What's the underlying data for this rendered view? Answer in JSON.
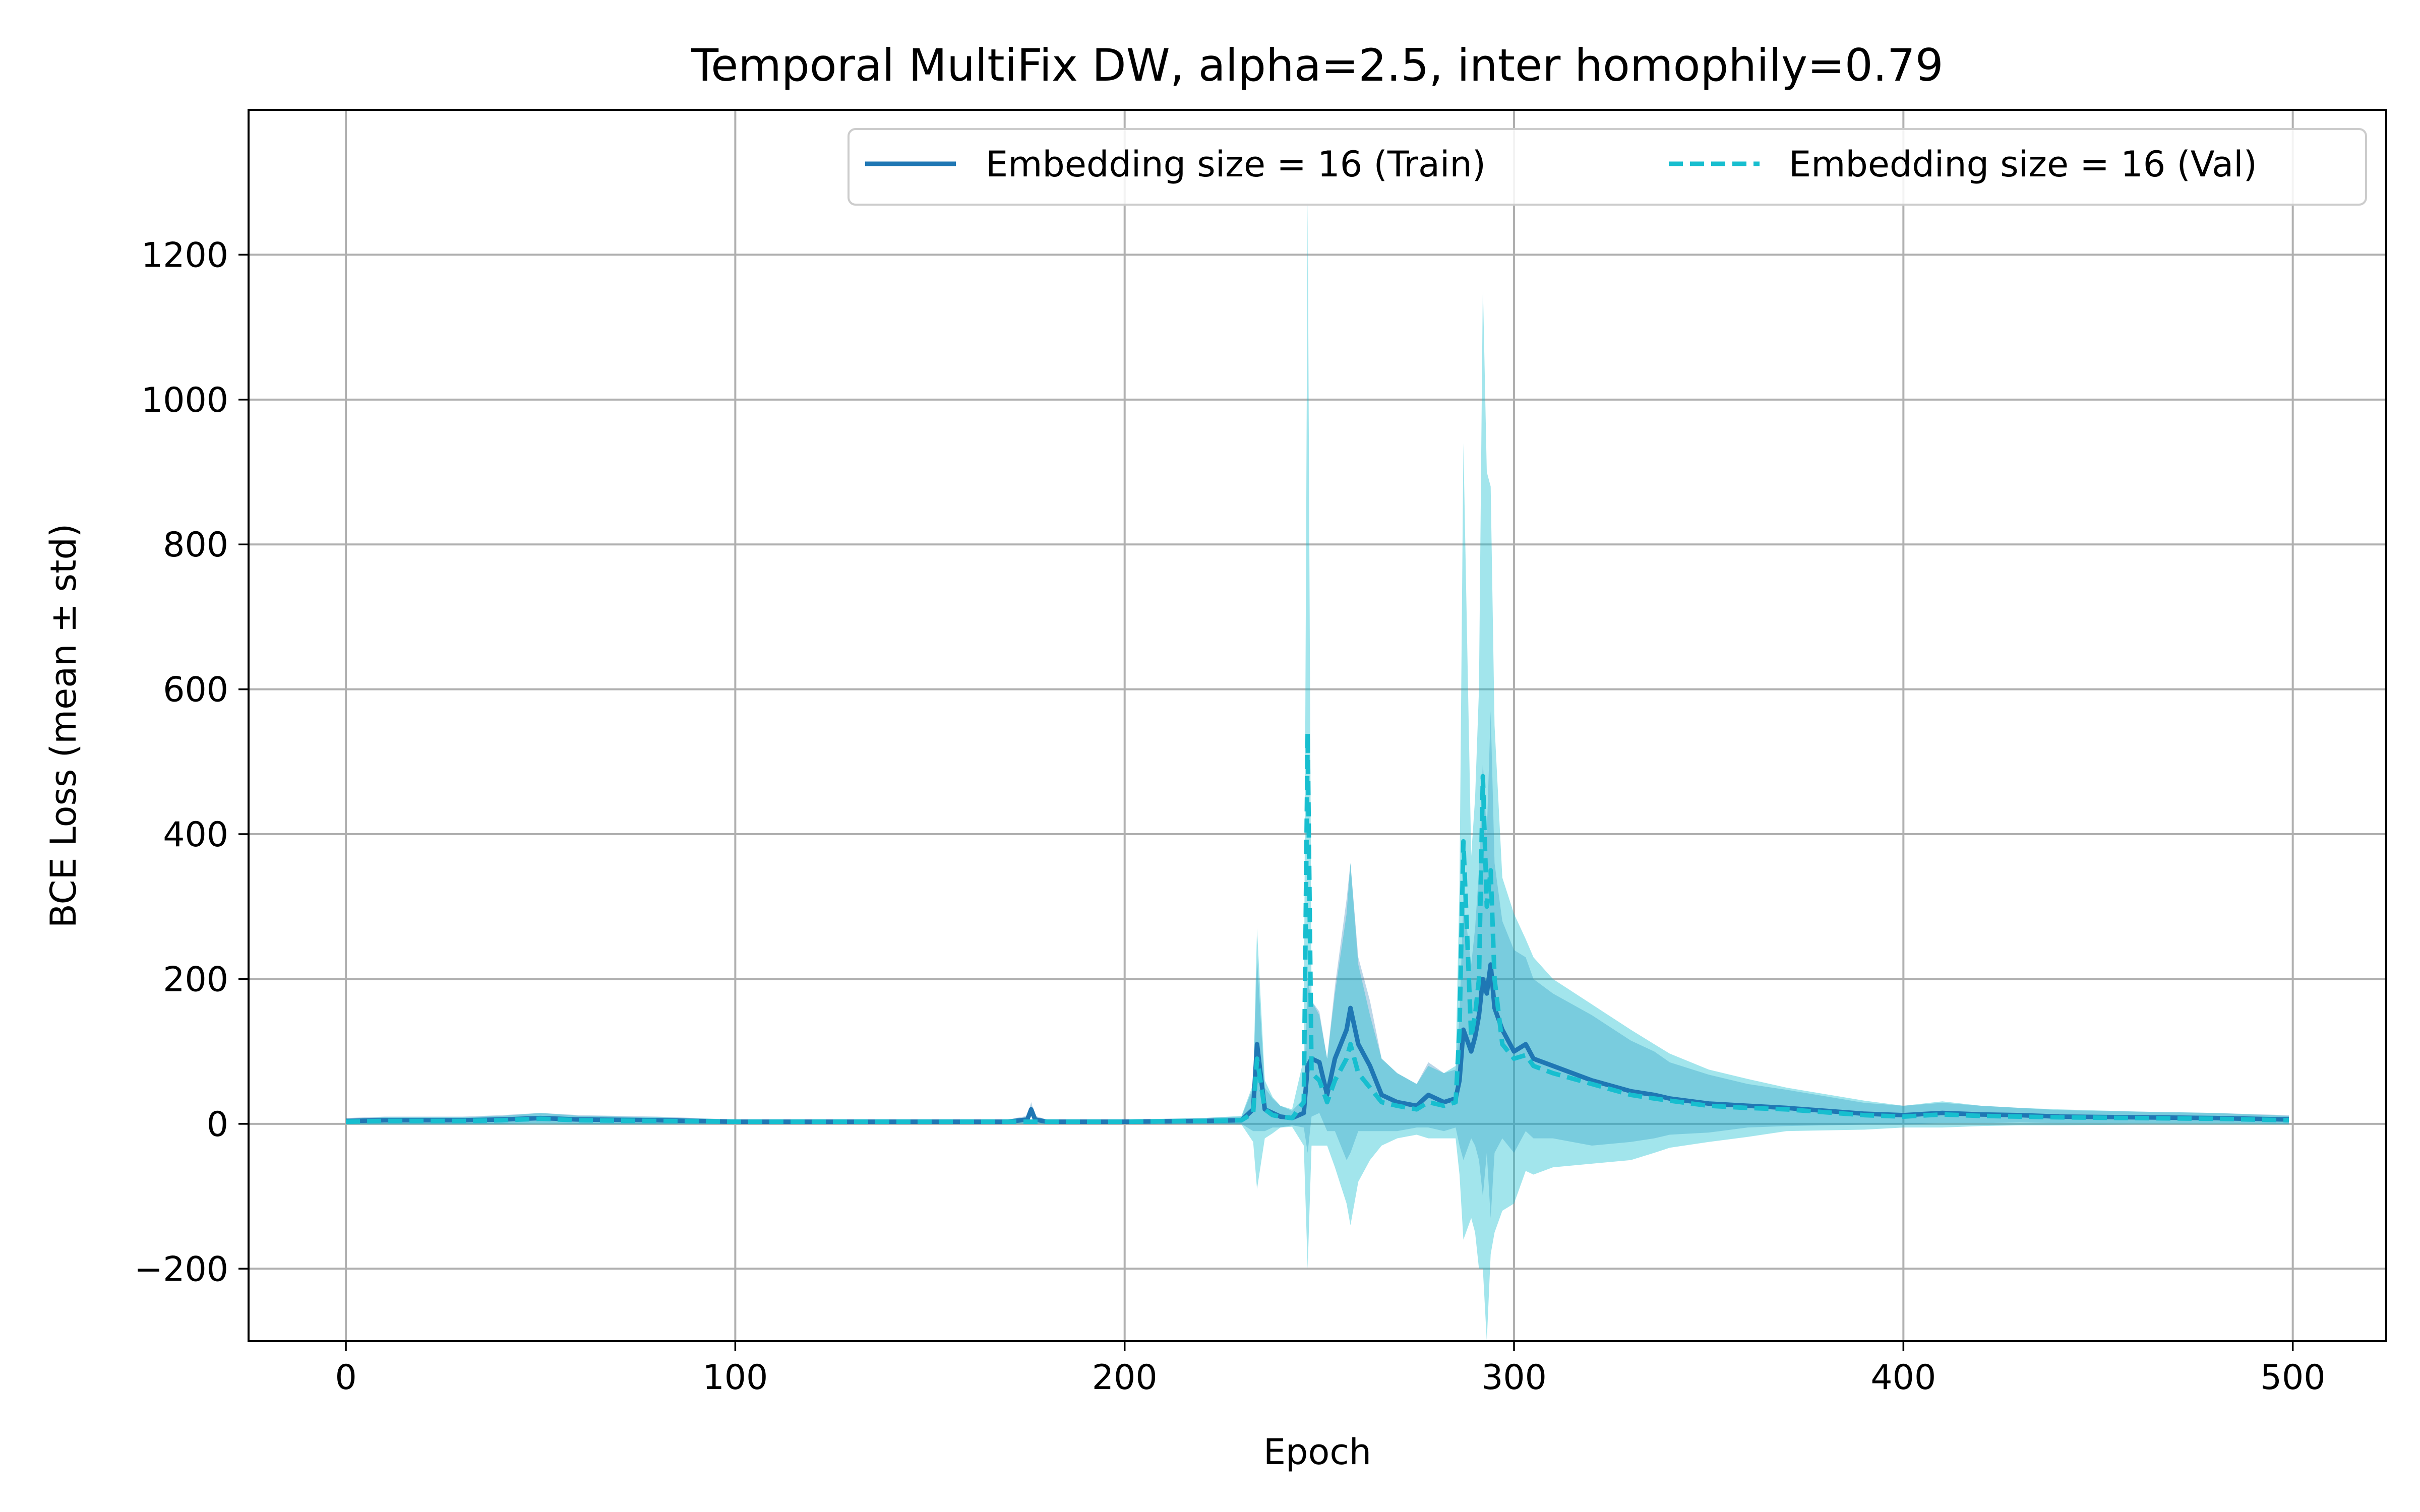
{
  "chart_data": {
    "type": "line",
    "title": "Temporal MultiFix DW, alpha=2.5, inter homophily=0.79",
    "xlabel": "Epoch",
    "ylabel": "BCE Loss (mean ± std)",
    "xlim": [
      -25,
      524
    ],
    "ylim": [
      -300,
      1400
    ],
    "xticks": [
      0,
      100,
      200,
      300,
      400,
      500
    ],
    "xtick_labels": [
      "0",
      "100",
      "200",
      "300",
      "400",
      "500"
    ],
    "yticks": [
      -200,
      0,
      200,
      400,
      600,
      800,
      1000,
      1200
    ],
    "ytick_labels": [
      "−200",
      "0",
      "200",
      "400",
      "600",
      "800",
      "1000",
      "1200"
    ],
    "grid": true,
    "legend": {
      "placement": "top-right",
      "columns": 2
    },
    "colors": {
      "train": "#1f77b4",
      "val": "#17becf",
      "band_train": "#1f77b4",
      "band_val": "#17becf"
    },
    "series": [
      {
        "name": "Embedding size = 16 (Train)",
        "style": "solid",
        "x": [
          0,
          10,
          20,
          30,
          40,
          50,
          60,
          80,
          100,
          120,
          150,
          170,
          175,
          176,
          177,
          180,
          200,
          220,
          230,
          233,
          234,
          236,
          238,
          240,
          243,
          246,
          247,
          248,
          250,
          252,
          254,
          257,
          258,
          260,
          263,
          266,
          270,
          275,
          278,
          282,
          285,
          286,
          287,
          289,
          290,
          291,
          292,
          293,
          294,
          295,
          297,
          300,
          303,
          305,
          310,
          320,
          330,
          336,
          340,
          350,
          360,
          370,
          380,
          390,
          400,
          410,
          420,
          430,
          440,
          460,
          480,
          499
        ],
        "y": [
          4,
          5,
          5,
          5,
          6,
          8,
          6,
          5,
          3,
          3,
          3,
          3,
          6,
          20,
          6,
          3,
          3,
          4,
          5,
          20,
          110,
          20,
          15,
          10,
          8,
          15,
          80,
          90,
          85,
          40,
          90,
          130,
          160,
          110,
          80,
          40,
          30,
          25,
          40,
          30,
          35,
          60,
          130,
          100,
          120,
          150,
          200,
          180,
          220,
          160,
          130,
          100,
          110,
          90,
          80,
          60,
          45,
          40,
          35,
          28,
          25,
          22,
          18,
          14,
          12,
          15,
          13,
          12,
          10,
          9,
          8,
          6
        ],
        "std": [
          4,
          5,
          5,
          5,
          6,
          7,
          6,
          5,
          3,
          3,
          3,
          3,
          5,
          10,
          5,
          3,
          3,
          4,
          5,
          30,
          120,
          30,
          20,
          15,
          10,
          20,
          120,
          80,
          70,
          50,
          100,
          180,
          200,
          120,
          90,
          50,
          40,
          30,
          45,
          40,
          40,
          90,
          180,
          120,
          150,
          200,
          300,
          220,
          350,
          200,
          150,
          140,
          120,
          110,
          100,
          90,
          70,
          60,
          50,
          40,
          30,
          25,
          20,
          15,
          13,
          14,
          12,
          10,
          9,
          8,
          7,
          6
        ]
      },
      {
        "name": "Embedding size = 16 (Val)",
        "style": "dashed",
        "x": [
          0,
          10,
          20,
          30,
          40,
          50,
          60,
          80,
          100,
          120,
          150,
          170,
          180,
          200,
          220,
          230,
          233,
          234,
          236,
          238,
          240,
          243,
          246,
          247,
          248,
          250,
          252,
          254,
          257,
          258,
          260,
          263,
          266,
          270,
          275,
          278,
          282,
          285,
          286,
          287,
          289,
          290,
          291,
          292,
          293,
          294,
          295,
          297,
          300,
          303,
          305,
          310,
          320,
          330,
          336,
          340,
          350,
          360,
          370,
          380,
          390,
          400,
          410,
          420,
          430,
          440,
          460,
          480,
          499
        ],
        "y": [
          3,
          4,
          4,
          4,
          5,
          7,
          5,
          4,
          3,
          3,
          3,
          3,
          3,
          3,
          4,
          5,
          15,
          90,
          20,
          12,
          10,
          8,
          30,
          540,
          70,
          60,
          30,
          60,
          90,
          110,
          70,
          50,
          30,
          25,
          20,
          30,
          25,
          30,
          130,
          390,
          120,
          150,
          200,
          480,
          300,
          350,
          200,
          110,
          90,
          95,
          80,
          70,
          55,
          40,
          35,
          32,
          25,
          22,
          20,
          16,
          12,
          10,
          13,
          11,
          10,
          9,
          8,
          7,
          5
        ],
        "std": [
          4,
          5,
          5,
          5,
          6,
          8,
          6,
          5,
          3,
          3,
          3,
          3,
          3,
          3,
          4,
          6,
          40,
          180,
          40,
          25,
          15,
          12,
          60,
          740,
          100,
          90,
          60,
          120,
          200,
          250,
          150,
          100,
          60,
          45,
          35,
          50,
          45,
          50,
          200,
          550,
          250,
          300,
          400,
          680,
          600,
          530,
          350,
          230,
          200,
          160,
          150,
          130,
          110,
          90,
          75,
          65,
          50,
          40,
          30,
          25,
          20,
          15,
          18,
          14,
          12,
          11,
          9,
          8,
          6
        ]
      }
    ]
  }
}
